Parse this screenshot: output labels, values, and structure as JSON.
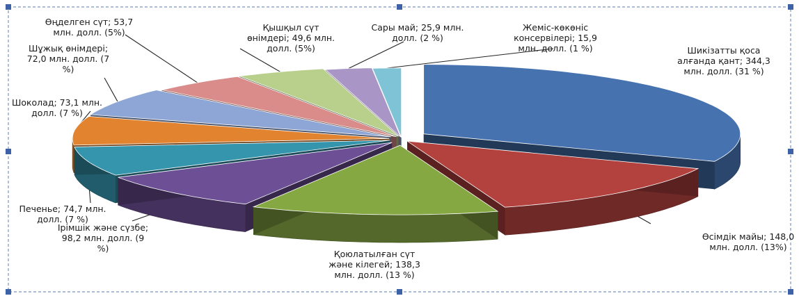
{
  "chart_data": {
    "type": "pie",
    "style": "3d-exploded",
    "slices": [
      {
        "name": "Шикізатты қоса алғанда қант",
        "value": 344.3,
        "percent": 31,
        "label": [
          "Шикізатты қоса",
          "алғанда қант; 344,3",
          "млн. долл. (31 %)"
        ],
        "color": "#4672b0"
      },
      {
        "name": "Өсімдік майы",
        "value": 148.0,
        "percent": 13,
        "label": [
          "Өсімдік майы; 148,0",
          "млн. долл. (13%)"
        ],
        "color": "#b3423f"
      },
      {
        "name": "Қоюлатылған сүт және кілегей",
        "value": 138.3,
        "percent": 13,
        "label": [
          "Қоюлатылған сүт",
          "және кілегей; 138,3",
          "млн. долл. (13 %)"
        ],
        "color": "#86a843"
      },
      {
        "name": "Ірімшік және сүзбе",
        "value": 98.2,
        "percent": 9,
        "label": [
          "Ірімшік және сүзбе;",
          "98,2 млн. долл. (9",
          "%)"
        ],
        "color": "#6d4f96"
      },
      {
        "name": "Печенье",
        "value": 74.7,
        "percent": 7,
        "label": [
          "Печенье; 74,7 млн.",
          "долл. (7 %)"
        ],
        "color": "#3495ad"
      },
      {
        "name": "Шоколад",
        "value": 73.1,
        "percent": 7,
        "label": [
          "Шоколад; 73,1 млн.",
          "долл. (7 %)"
        ],
        "color": "#e2842f"
      },
      {
        "name": "Шұжық өнімдері",
        "value": 72.0,
        "percent": 7,
        "label": [
          "Шұжық өнімдері;",
          "72,0 млн. долл. (7",
          "%)"
        ],
        "color": "#8ea6d6"
      },
      {
        "name": "Өңделген сүт",
        "value": 53.7,
        "percent": 5,
        "label": [
          "Өңделген сүт; 53,7",
          "млн. долл. (5%)"
        ],
        "color": "#d98c8a"
      },
      {
        "name": "Қышқыл сүт өнімдері",
        "value": 49.6,
        "percent": 5,
        "label": [
          "Қышқыл сүт",
          "өнімдері; 49,6 млн.",
          "долл. (5%)"
        ],
        "color": "#b9d08c"
      },
      {
        "name": "Сары май",
        "value": 25.9,
        "percent": 2,
        "label": [
          "Сары май; 25,9 млн.",
          "долл. (2 %)"
        ],
        "color": "#a996c6"
      },
      {
        "name": "Жеміс-көкөніс консервілері",
        "value": 15.9,
        "percent": 1,
        "label": [
          "Жеміс-көкөніс",
          "консервілері; 15,9",
          "млн. долл. (1 %)"
        ],
        "color": "#7fc3d6"
      }
    ],
    "legend": "none",
    "labels": "outside-with-leaders"
  }
}
